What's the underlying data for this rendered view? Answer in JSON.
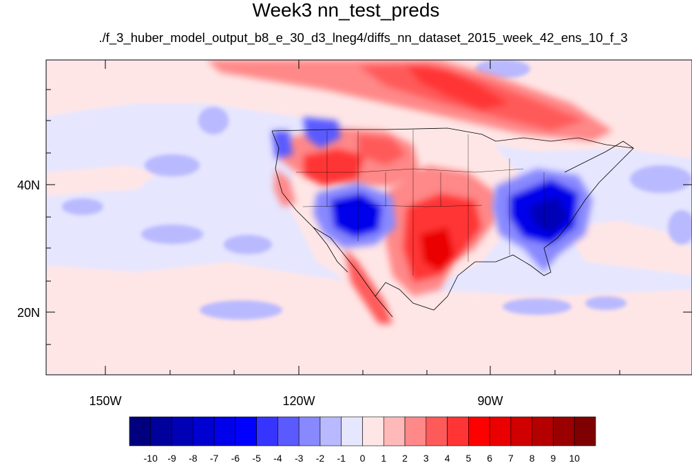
{
  "title": "Week3 nn_test_preds",
  "subtitle": "./f_3_huber_model_output_b8_e_30_d3_lneg4/diffs_nn_dataset_2015_week_42_ens_10_f_3",
  "map": {
    "lon_range": [
      -160,
      -62
    ],
    "lat_range": [
      10,
      60
    ],
    "x_tick_labels": [
      "150W",
      "120W",
      "90W"
    ],
    "y_tick_labels": [
      "40N",
      "20N"
    ],
    "colorbar": {
      "labels": [
        "-10",
        "-9",
        "-8",
        "-7",
        "-6",
        "-5",
        "-4",
        "-3",
        "-2",
        "-1",
        "0",
        "1",
        "2",
        "3",
        "4",
        "5",
        "6",
        "7",
        "8",
        "9",
        "10"
      ],
      "colors": [
        "#00007f",
        "#00009a",
        "#0000b5",
        "#0000d0",
        "#0000ea",
        "#0000ff",
        "#3535ff",
        "#5a5aff",
        "#8888ff",
        "#b9b9ff",
        "#e6e6ff",
        "#ffe6e6",
        "#ffb9b9",
        "#ff8888",
        "#ff5a5a",
        "#ff3535",
        "#ff0000",
        "#ea0000",
        "#d00000",
        "#b50000",
        "#9a0000",
        "#7f0000"
      ]
    }
  }
}
